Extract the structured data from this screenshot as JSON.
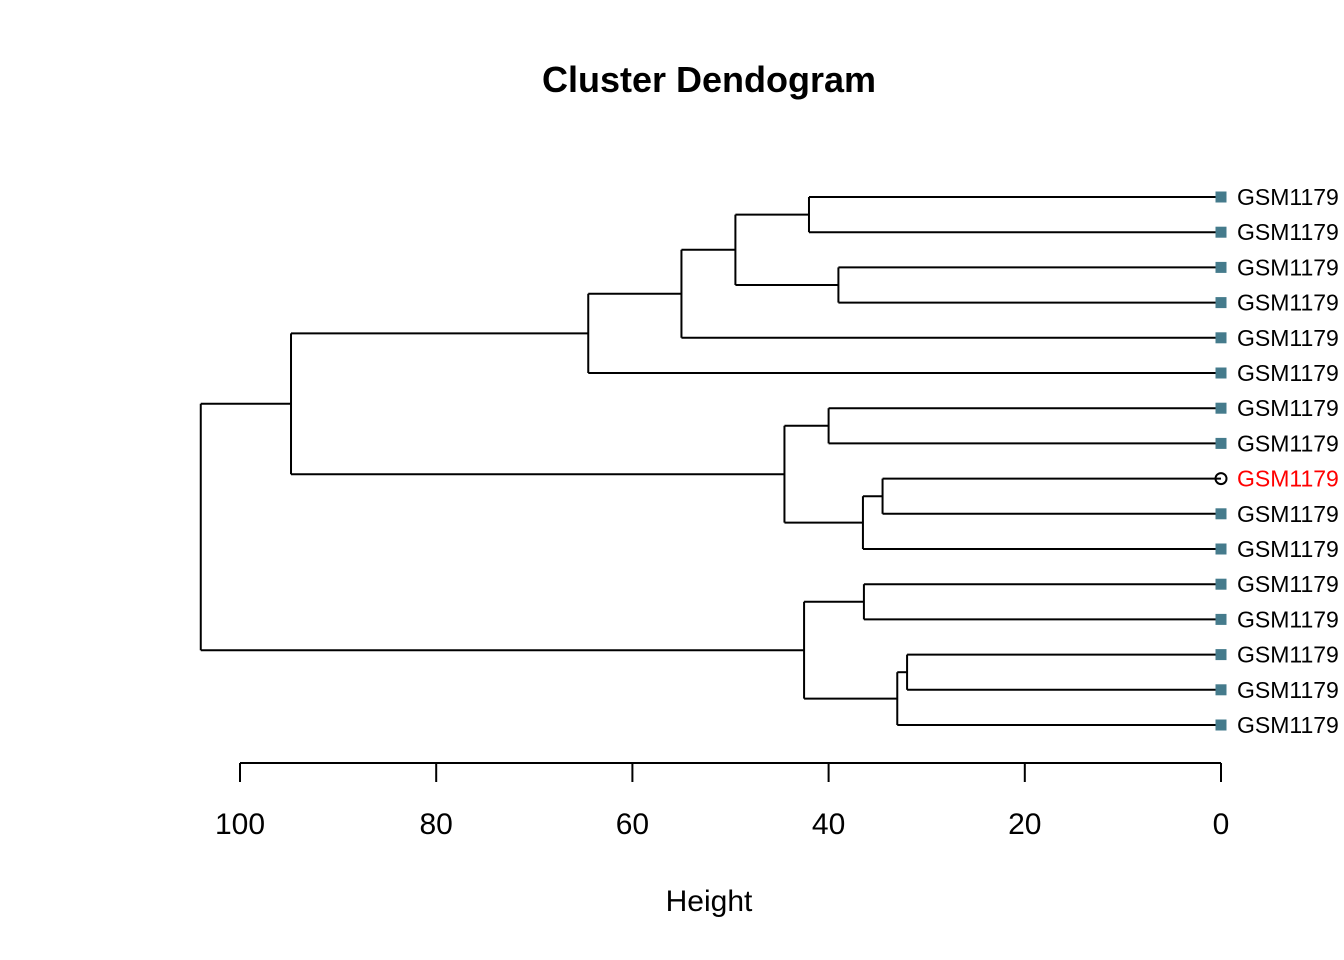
{
  "colors": {
    "marker": "#457b8c",
    "highlight": "#ff0000",
    "branch": "#000000"
  },
  "chart_data": {
    "type": "dendrogram",
    "orientation": "horizontal",
    "title": "Cluster Dendogram",
    "xlabel": "Height",
    "xlim": [
      104,
      0
    ],
    "x_ticks": [
      100,
      80,
      60,
      40,
      20,
      0
    ],
    "leaves": [
      {
        "label": "GSM1179",
        "marker": "square"
      },
      {
        "label": "GSM1179",
        "marker": "square"
      },
      {
        "label": "GSM1179",
        "marker": "square"
      },
      {
        "label": "GSM1179",
        "marker": "square"
      },
      {
        "label": "GSM1179",
        "marker": "square"
      },
      {
        "label": "GSM1179",
        "marker": "square"
      },
      {
        "label": "GSM1179",
        "marker": "square"
      },
      {
        "label": "GSM1179",
        "marker": "square"
      },
      {
        "label": "GSM1179",
        "marker": "circle",
        "highlight": true
      },
      {
        "label": "GSM1179",
        "marker": "square"
      },
      {
        "label": "GSM1179",
        "marker": "square"
      },
      {
        "label": "GSM1179",
        "marker": "square"
      },
      {
        "label": "GSM1179",
        "marker": "square"
      },
      {
        "label": "GSM1179",
        "marker": "square"
      },
      {
        "label": "GSM1179",
        "marker": "square"
      },
      {
        "label": "GSM1179",
        "marker": "square"
      }
    ],
    "merges": [
      {
        "id": "n1",
        "children": [
          0,
          1
        ],
        "height": 42.0
      },
      {
        "id": "n2",
        "children": [
          2,
          3
        ],
        "height": 39.0
      },
      {
        "id": "n3",
        "children": [
          "n1",
          "n2"
        ],
        "height": 49.5
      },
      {
        "id": "n4",
        "children": [
          "n3",
          4
        ],
        "height": 55.0
      },
      {
        "id": "n5",
        "children": [
          "n4",
          5
        ],
        "height": 64.5
      },
      {
        "id": "n6",
        "children": [
          6,
          7
        ],
        "height": 40.0
      },
      {
        "id": "n7",
        "children": [
          8,
          9
        ],
        "height": 34.5
      },
      {
        "id": "n8",
        "children": [
          "n7",
          10
        ],
        "height": 36.5
      },
      {
        "id": "n9",
        "children": [
          "n6",
          "n8"
        ],
        "height": 44.5
      },
      {
        "id": "n10",
        "children": [
          "n5",
          "n9"
        ],
        "height": 94.8
      },
      {
        "id": "n11",
        "children": [
          11,
          12
        ],
        "height": 36.4
      },
      {
        "id": "n12",
        "children": [
          13,
          14
        ],
        "height": 32.0
      },
      {
        "id": "n13",
        "children": [
          "n12",
          15
        ],
        "height": 33.0
      },
      {
        "id": "n14",
        "children": [
          "n11",
          "n13"
        ],
        "height": 42.5
      },
      {
        "id": "n15",
        "children": [
          "n10",
          "n14"
        ],
        "height": 104.0
      }
    ]
  }
}
